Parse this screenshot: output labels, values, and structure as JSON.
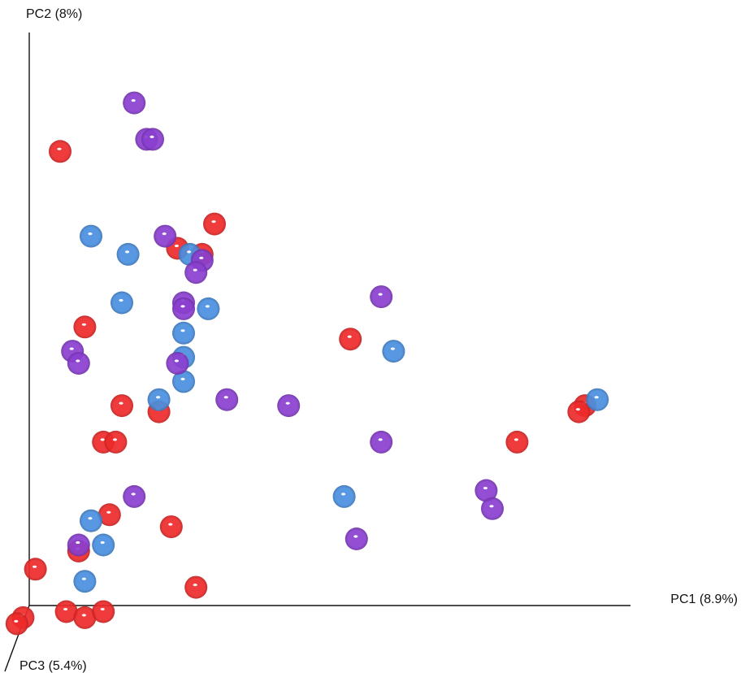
{
  "chart_data": {
    "type": "scatter",
    "title": "",
    "axes": {
      "pc1": "PC1 (8.9%)",
      "pc2": "PC2 (8%)",
      "pc3": "PC3 (5.4%)"
    },
    "xlim": [
      0,
      1
    ],
    "ylim": [
      0,
      1
    ],
    "grid": false,
    "legend": "none",
    "series": [
      {
        "color": "#ee2a2a",
        "points": [
          [
            0.05,
            0.75
          ],
          [
            0.3,
            0.63
          ],
          [
            0.24,
            0.59
          ],
          [
            0.28,
            0.58
          ],
          [
            0.09,
            0.46
          ],
          [
            0.52,
            0.44
          ],
          [
            0.15,
            0.33
          ],
          [
            0.21,
            0.32
          ],
          [
            0.12,
            0.27
          ],
          [
            0.14,
            0.27
          ],
          [
            0.13,
            0.15
          ],
          [
            0.23,
            0.13
          ],
          [
            0.08,
            0.09
          ],
          [
            0.01,
            0.06
          ],
          [
            0.27,
            0.03
          ],
          [
            -0.01,
            -0.02
          ],
          [
            0.06,
            -0.01
          ],
          [
            0.09,
            -0.02
          ],
          [
            0.12,
            -0.01
          ],
          [
            -0.02,
            -0.03
          ],
          [
            0.79,
            0.27
          ],
          [
            0.9,
            0.33
          ],
          [
            0.89,
            0.32
          ]
        ]
      },
      {
        "color": "#4a8fe0",
        "points": [
          [
            0.1,
            0.61
          ],
          [
            0.16,
            0.58
          ],
          [
            0.26,
            0.58
          ],
          [
            0.29,
            0.49
          ],
          [
            0.15,
            0.5
          ],
          [
            0.25,
            0.45
          ],
          [
            0.25,
            0.41
          ],
          [
            0.25,
            0.37
          ],
          [
            0.21,
            0.34
          ],
          [
            0.59,
            0.42
          ],
          [
            0.1,
            0.14
          ],
          [
            0.12,
            0.1
          ],
          [
            0.09,
            0.04
          ],
          [
            0.51,
            0.18
          ],
          [
            0.92,
            0.34
          ]
        ]
      },
      {
        "color": "#8a3fcf",
        "points": [
          [
            0.17,
            0.83
          ],
          [
            0.19,
            0.77
          ],
          [
            0.2,
            0.77
          ],
          [
            0.22,
            0.61
          ],
          [
            0.28,
            0.57
          ],
          [
            0.27,
            0.55
          ],
          [
            0.25,
            0.5
          ],
          [
            0.25,
            0.49
          ],
          [
            0.07,
            0.42
          ],
          [
            0.08,
            0.4
          ],
          [
            0.24,
            0.4
          ],
          [
            0.32,
            0.34
          ],
          [
            0.42,
            0.33
          ],
          [
            0.57,
            0.51
          ],
          [
            0.57,
            0.27
          ],
          [
            0.17,
            0.18
          ],
          [
            0.08,
            0.1
          ],
          [
            0.53,
            0.11
          ],
          [
            0.74,
            0.19
          ],
          [
            0.75,
            0.16
          ]
        ]
      }
    ]
  }
}
